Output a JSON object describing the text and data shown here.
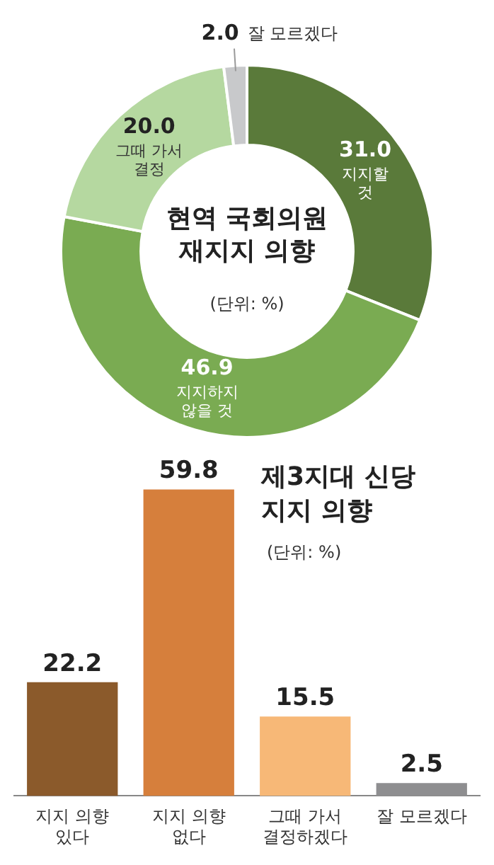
{
  "chart_data": [
    {
      "type": "donut",
      "title": "현역 국회의원\n재지지 의향",
      "subtitle": "(단위: %)",
      "categories": [
        "지지할\n것",
        "지지하지\n않을 것",
        "그때 가서\n결정",
        "잘 모르겠다"
      ],
      "values": [
        31.0,
        46.9,
        20.0,
        2.0
      ],
      "colors": [
        "#5a7a3a",
        "#7aab52",
        "#b5d8a0",
        "#c8c9cb"
      ],
      "value_labels": [
        "31.0",
        "46.9",
        "20.0",
        "2.0"
      ],
      "legend": false
    },
    {
      "type": "bar",
      "title": "제3지대 신당\n지지 의향",
      "subtitle": "(단위: %)",
      "categories": [
        "지지 의향\n있다",
        "지지 의향\n없다",
        "그때 가서\n결정하겠다",
        "잘 모르겠다"
      ],
      "values": [
        22.2,
        59.8,
        15.5,
        2.5
      ],
      "colors": [
        "#8b5a2b",
        "#d67f3c",
        "#f7b877",
        "#8e8e90"
      ],
      "value_labels": [
        "22.2",
        "59.8",
        "15.5",
        "2.5"
      ],
      "legend": false,
      "grid": false
    }
  ]
}
